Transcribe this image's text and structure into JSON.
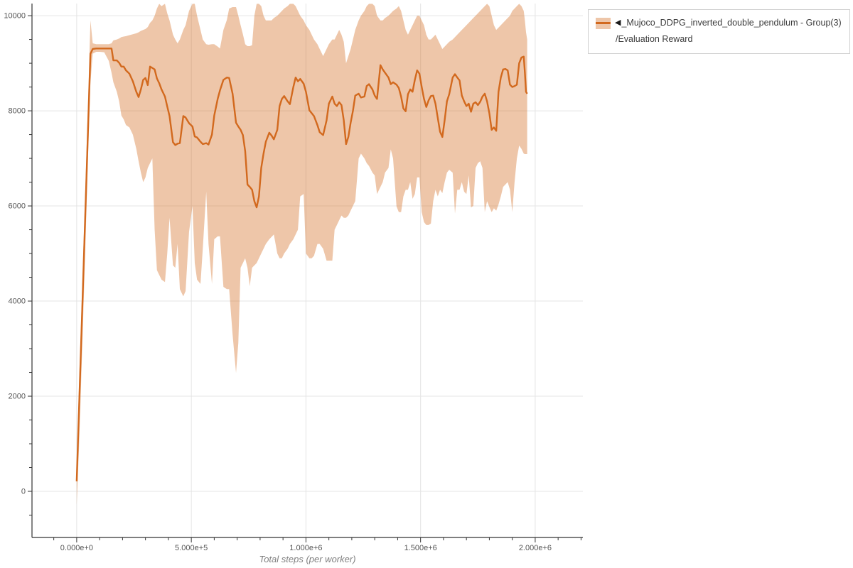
{
  "page": {
    "background": "#ffffff"
  },
  "legend": {
    "collapse_icon": "◀",
    "series_name": "_Mujoco_DDPG_inverted_double_pendulum - Group(3)",
    "metric_name": "/Evaluation Reward"
  },
  "chart_data": {
    "type": "line",
    "title": "",
    "xlabel": "Total steps (per worker)",
    "ylabel": "",
    "grid": true,
    "legend_position": "top-right",
    "xlim": [
      -195000,
      2208000
    ],
    "ylim": [
      -970,
      10255
    ],
    "band_opacity": 0.38,
    "colors": {
      "line": "#d2691e",
      "band": "#d2691e",
      "grid": "#e4e4e4",
      "axis": "#333333",
      "tick_text": "#555555",
      "title_text": "#808080"
    },
    "x_axis": {
      "major": {
        "values": [
          0,
          500000,
          1000000,
          1500000,
          2000000
        ],
        "labels": [
          "0.000e+0",
          "5.000e+5",
          "1.000e+6",
          "1.500e+6",
          "2.000e+6"
        ]
      },
      "minor_step": 100000
    },
    "y_axis": {
      "major": {
        "values": [
          0,
          2000,
          4000,
          6000,
          8000,
          10000
        ],
        "labels": [
          "0",
          "2000",
          "4000",
          "6000",
          "8000",
          "10000"
        ]
      },
      "minor_step": 500
    },
    "series": [
      {
        "name": "_Mujoco_DDPG_inverted_double_pendulum - Group(3)/Evaluation Reward",
        "color": "#d2691e",
        "steps_k": [
          0,
          10,
          20,
          30,
          40,
          50,
          60,
          70,
          85,
          100,
          120,
          140,
          152,
          160,
          175,
          185,
          195,
          205,
          215,
          230,
          245,
          260,
          270,
          280,
          290,
          300,
          310,
          320,
          330,
          340,
          350,
          360,
          370,
          385,
          395,
          405,
          420,
          430,
          440,
          450,
          465,
          475,
          490,
          505,
          515,
          525,
          540,
          550,
          565,
          575,
          590,
          600,
          615,
          625,
          640,
          655,
          665,
          680,
          695,
          705,
          715,
          725,
          735,
          745,
          755,
          765,
          775,
          785,
          795,
          805,
          815,
          825,
          840,
          850,
          860,
          875,
          885,
          895,
          905,
          920,
          930,
          945,
          955,
          965,
          975,
          990,
          1000,
          1015,
          1025,
          1035,
          1050,
          1060,
          1075,
          1090,
          1100,
          1115,
          1125,
          1135,
          1145,
          1155,
          1165,
          1175,
          1185,
          1195,
          1205,
          1215,
          1230,
          1240,
          1255,
          1265,
          1275,
          1290,
          1300,
          1310,
          1325,
          1335,
          1345,
          1360,
          1370,
          1380,
          1395,
          1405,
          1415,
          1425,
          1435,
          1445,
          1455,
          1465,
          1475,
          1485,
          1495,
          1505,
          1515,
          1525,
          1535,
          1545,
          1555,
          1565,
          1575,
          1585,
          1595,
          1605,
          1615,
          1625,
          1640,
          1650,
          1660,
          1670,
          1680,
          1690,
          1700,
          1710,
          1720,
          1730,
          1740,
          1750,
          1760,
          1770,
          1780,
          1790,
          1800,
          1810,
          1820,
          1830,
          1840,
          1850,
          1860,
          1870,
          1880,
          1890,
          1900,
          1910,
          1920,
          1930,
          1940,
          1950,
          1955,
          1960,
          1965
        ],
        "mean": [
          210,
          1700,
          3200,
          4700,
          6200,
          7700,
          9200,
          9300,
          9310,
          9310,
          9310,
          9310,
          9310,
          9060,
          9060,
          9010,
          8930,
          8930,
          8850,
          8780,
          8620,
          8400,
          8290,
          8450,
          8650,
          8690,
          8540,
          8930,
          8900,
          8870,
          8680,
          8580,
          8450,
          8300,
          8090,
          7890,
          7340,
          7280,
          7310,
          7320,
          7890,
          7860,
          7740,
          7670,
          7460,
          7440,
          7350,
          7300,
          7320,
          7290,
          7500,
          7900,
          8250,
          8430,
          8650,
          8700,
          8690,
          8360,
          7750,
          7670,
          7600,
          7490,
          7150,
          6450,
          6400,
          6340,
          6100,
          5970,
          6200,
          6800,
          7100,
          7350,
          7540,
          7480,
          7400,
          7600,
          8100,
          8250,
          8310,
          8200,
          8140,
          8500,
          8700,
          8620,
          8670,
          8570,
          8400,
          8010,
          7950,
          7890,
          7700,
          7550,
          7490,
          7800,
          8150,
          8300,
          8150,
          8100,
          8180,
          8120,
          7800,
          7300,
          7450,
          7750,
          8000,
          8320,
          8360,
          8280,
          8300,
          8520,
          8560,
          8450,
          8320,
          8250,
          8960,
          8870,
          8800,
          8700,
          8560,
          8600,
          8550,
          8480,
          8300,
          8050,
          7990,
          8350,
          8450,
          8400,
          8650,
          8850,
          8780,
          8500,
          8250,
          8080,
          8220,
          8310,
          8320,
          8150,
          7850,
          7560,
          7450,
          7800,
          8200,
          8350,
          8700,
          8770,
          8700,
          8640,
          8320,
          8200,
          8100,
          8150,
          7980,
          8150,
          8180,
          8120,
          8190,
          8300,
          8360,
          8200,
          7950,
          7600,
          7650,
          7580,
          8400,
          8700,
          8870,
          8880,
          8850,
          8550,
          8500,
          8520,
          8550,
          9000,
          9120,
          9140,
          8800,
          8400,
          8360
        ],
        "band_low": [
          -280,
          900,
          2400,
          3900,
          5500,
          7100,
          8600,
          9200,
          9240,
          9240,
          9230,
          9050,
          8800,
          8600,
          8400,
          8200,
          7900,
          7820,
          7700,
          7650,
          7500,
          7200,
          6940,
          6700,
          6500,
          6600,
          6800,
          6900,
          7000,
          5500,
          4650,
          4550,
          4450,
          4400,
          5000,
          5750,
          4750,
          4700,
          5200,
          4250,
          4100,
          4210,
          5450,
          6000,
          4800,
          4450,
          4360,
          5100,
          6300,
          5200,
          4360,
          5300,
          5360,
          5360,
          4300,
          4250,
          4250,
          3300,
          2490,
          3120,
          4700,
          4800,
          4900,
          4700,
          4310,
          4700,
          4750,
          4800,
          4900,
          5000,
          5100,
          5200,
          5300,
          5350,
          5400,
          5000,
          4900,
          4900,
          5000,
          5100,
          5200,
          5300,
          5400,
          5500,
          6200,
          6250,
          5000,
          4900,
          4900,
          4950,
          5200,
          5200,
          5100,
          4850,
          4850,
          4850,
          5500,
          5600,
          5700,
          5800,
          5750,
          5750,
          5800,
          5900,
          6000,
          6100,
          7000,
          7100,
          7000,
          6900,
          6840,
          6700,
          6640,
          6250,
          6400,
          6500,
          6700,
          6800,
          7190,
          7000,
          5990,
          5870,
          5870,
          6200,
          6340,
          6340,
          6500,
          6150,
          6250,
          6600,
          6600,
          5870,
          5660,
          5600,
          5600,
          5630,
          6100,
          6340,
          6200,
          6340,
          6270,
          6500,
          6700,
          6760,
          6700,
          5840,
          6340,
          6340,
          6500,
          6300,
          6250,
          6640,
          5970,
          6000,
          6800,
          6900,
          6940,
          6800,
          5870,
          6100,
          5980,
          5870,
          5950,
          5900,
          6030,
          6200,
          6400,
          6450,
          6500,
          6340,
          5870,
          6500,
          7000,
          7270,
          7200,
          7100,
          7090,
          7090,
          7090
        ],
        "band_high": [
          600,
          2200,
          3700,
          5200,
          6700,
          8300,
          9900,
          9420,
          9400,
          9400,
          9400,
          9400,
          9420,
          9480,
          9500,
          9520,
          9550,
          9560,
          9570,
          9590,
          9610,
          9630,
          9650,
          9680,
          9700,
          9720,
          9760,
          9850,
          9900,
          10000,
          10150,
          10250,
          10200,
          10250,
          10050,
          9900,
          9600,
          9500,
          9420,
          9500,
          9700,
          9800,
          10100,
          10250,
          10250,
          10000,
          9700,
          9500,
          9400,
          9390,
          9400,
          9400,
          9350,
          9310,
          9700,
          9910,
          10150,
          10180,
          10180,
          10000,
          9800,
          9610,
          9400,
          9360,
          9360,
          9380,
          10000,
          10250,
          10250,
          10200,
          10000,
          9900,
          9900,
          9900,
          9950,
          10000,
          10050,
          10100,
          10150,
          10200,
          10250,
          10250,
          10200,
          10100,
          10000,
          9900,
          9800,
          9700,
          9600,
          9500,
          9400,
          9300,
          9150,
          9300,
          9400,
          9500,
          9500,
          9600,
          9700,
          9600,
          9450,
          9000,
          9150,
          9300,
          9500,
          9700,
          9900,
          10000,
          10100,
          10200,
          10250,
          10250,
          10200,
          10000,
          9900,
          9900,
          9950,
          10000,
          10050,
          10100,
          10150,
          10200,
          10100,
          9900,
          9700,
          9600,
          9700,
          9800,
          9900,
          10000,
          10000,
          9900,
          9800,
          9600,
          9500,
          9500,
          9550,
          9600,
          9500,
          9400,
          9300,
          9350,
          9400,
          9450,
          9500,
          9550,
          9600,
          9650,
          9700,
          9750,
          9800,
          9850,
          9900,
          9950,
          10000,
          10050,
          10100,
          10150,
          10200,
          10250,
          10200,
          10000,
          9800,
          9700,
          9750,
          9800,
          9850,
          9900,
          9950,
          10000,
          10100,
          10150,
          10200,
          10250,
          10200,
          10100,
          9900,
          9650,
          9500
        ]
      }
    ]
  }
}
